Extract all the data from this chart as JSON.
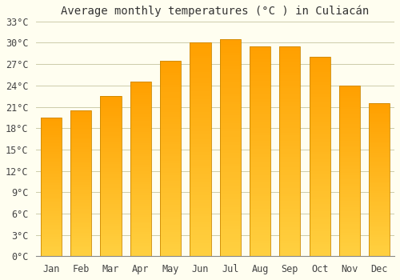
{
  "title": "Average monthly temperatures (°C ) in Culiacán",
  "months": [
    "Jan",
    "Feb",
    "Mar",
    "Apr",
    "May",
    "Jun",
    "Jul",
    "Aug",
    "Sep",
    "Oct",
    "Nov",
    "Dec"
  ],
  "temperatures": [
    19.5,
    20.5,
    22.5,
    24.5,
    27.5,
    30.0,
    30.5,
    29.5,
    29.5,
    28.0,
    24.0,
    21.5
  ],
  "ylim": [
    0,
    33
  ],
  "yticks": [
    0,
    3,
    6,
    9,
    12,
    15,
    18,
    21,
    24,
    27,
    30,
    33
  ],
  "bar_color_bottom": "#FFD040",
  "bar_color_top": "#FFA000",
  "bar_edge_color": "#CC8800",
  "background_color": "#FFFEF0",
  "grid_color": "#CCCCAA",
  "title_fontsize": 10,
  "tick_fontsize": 8.5,
  "bar_width": 0.7
}
